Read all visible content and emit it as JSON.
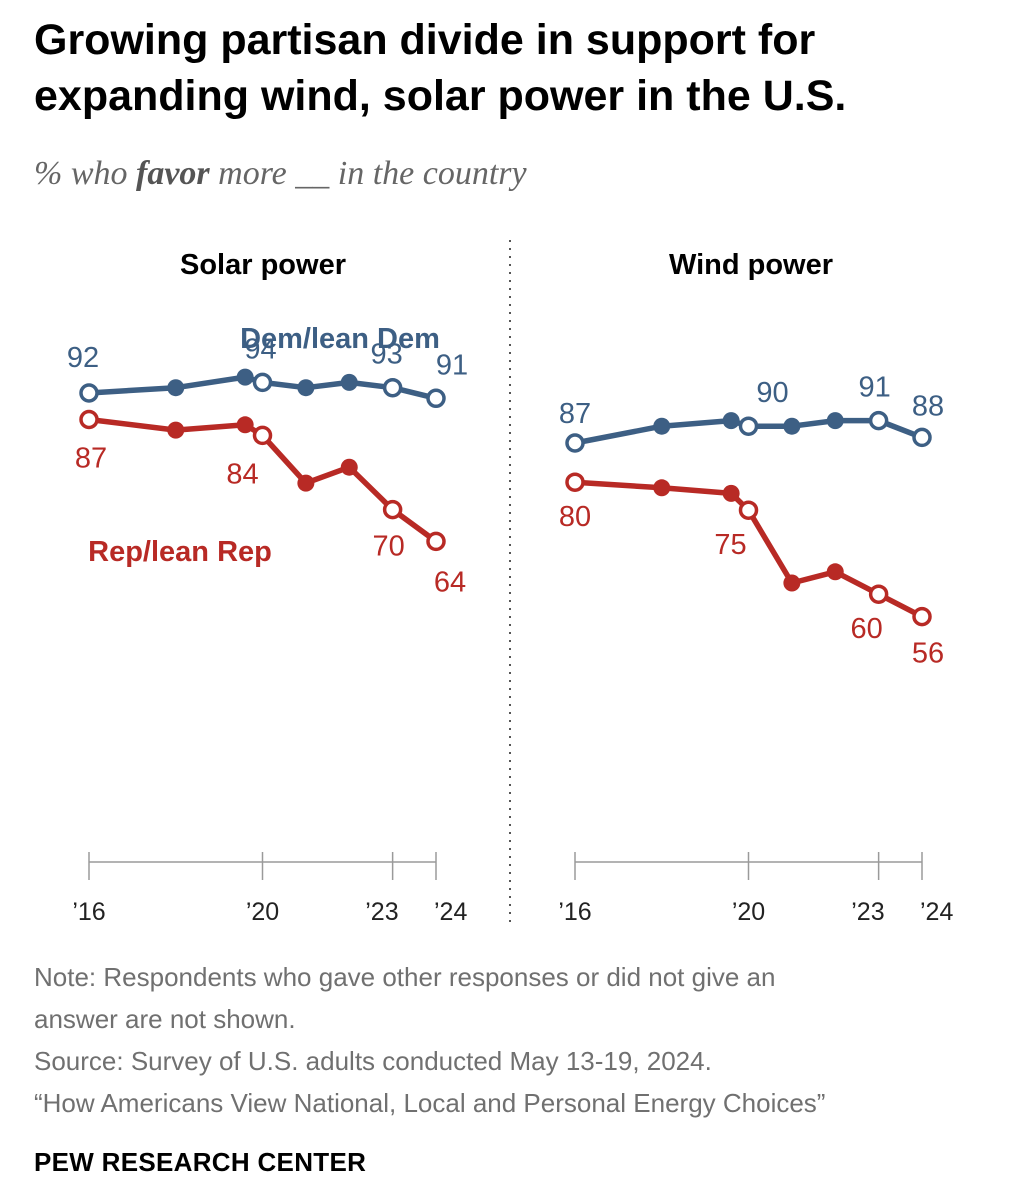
{
  "header": {
    "title": "Growing partisan divide in support for expanding wind, solar power in the U.S.",
    "subtitle_pre": "% who ",
    "subtitle_em": "favor",
    "subtitle_post": " more __ in the country"
  },
  "colors": {
    "dem": "#3d5f84",
    "rep": "#b82a25",
    "axis": "#9a9a9a",
    "divider": "#555555"
  },
  "chart_data": [
    {
      "type": "line",
      "title": "Solar power",
      "x_ticks": [
        2016,
        2020,
        2023,
        2024
      ],
      "x_tick_labels": [
        "’16",
        "’20",
        "’23",
        "’24"
      ],
      "xlim": [
        2016,
        2024
      ],
      "series": [
        {
          "name": "Dem/lean Dem",
          "x": [
            2016,
            2018,
            2019.6,
            2020,
            2021,
            2022,
            2023,
            2024
          ],
          "y": [
            92,
            93,
            95,
            94,
            93,
            94,
            93,
            91
          ],
          "hollow": [
            true,
            false,
            false,
            true,
            false,
            false,
            true,
            true
          ],
          "labels": [
            "92",
            "",
            "",
            "94",
            "",
            "",
            "93",
            "91"
          ]
        },
        {
          "name": "Rep/lean Rep",
          "x": [
            2016,
            2018,
            2019.6,
            2020,
            2021,
            2022,
            2023,
            2024
          ],
          "y": [
            87,
            85,
            86,
            84,
            75,
            78,
            70,
            64
          ],
          "hollow": [
            true,
            false,
            false,
            true,
            false,
            false,
            true,
            true
          ],
          "labels": [
            "87",
            "",
            "",
            "84",
            "",
            "",
            "70",
            "64"
          ]
        }
      ]
    },
    {
      "type": "line",
      "title": "Wind power",
      "x_ticks": [
        2016,
        2020,
        2023,
        2024
      ],
      "x_tick_labels": [
        "’16",
        "’20",
        "’23",
        "’24"
      ],
      "xlim": [
        2016,
        2024
      ],
      "series": [
        {
          "name": "Dem/lean Dem",
          "x": [
            2016,
            2018,
            2019.6,
            2020,
            2021,
            2022,
            2023,
            2024
          ],
          "y": [
            87,
            90,
            91,
            90,
            90,
            91,
            91,
            88
          ],
          "hollow": [
            true,
            false,
            false,
            true,
            false,
            false,
            true,
            true
          ],
          "labels": [
            "87",
            "",
            "",
            "90",
            "",
            "",
            "91",
            "88"
          ]
        },
        {
          "name": "Rep/lean Rep",
          "x": [
            2016,
            2018,
            2019.6,
            2020,
            2021,
            2022,
            2023,
            2024
          ],
          "y": [
            80,
            79,
            78,
            75,
            62,
            64,
            60,
            56
          ],
          "hollow": [
            true,
            false,
            false,
            true,
            false,
            false,
            true,
            true
          ],
          "labels": [
            "80",
            "",
            "",
            "75",
            "",
            "",
            "60",
            "56"
          ]
        }
      ]
    }
  ],
  "footer": {
    "note_line1": "Note: Respondents who gave other responses or did not give an",
    "note_line2": "answer are not shown.",
    "source_line1": "Source: Survey of U.S. adults conducted May 13-19, 2024.",
    "source_line2": "“How Americans View National, Local and Personal Energy Choices”",
    "brand": "PEW RESEARCH CENTER"
  }
}
